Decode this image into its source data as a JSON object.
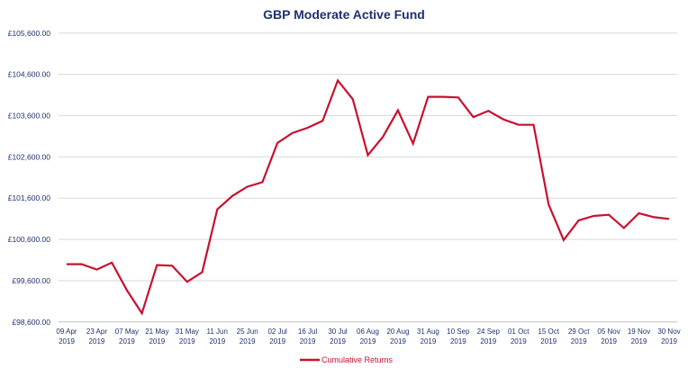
{
  "chart_data": {
    "type": "line",
    "title": "GBP Moderate Active Fund",
    "xlabel": "",
    "ylabel": "",
    "ylim": [
      98600,
      105600
    ],
    "yticks": [
      98600,
      99600,
      100600,
      101600,
      102600,
      103600,
      104600,
      105600
    ],
    "ytick_labels": [
      "£98,600.00",
      "£99,600.00",
      "£100,600.00",
      "£101,600.00",
      "£102,600.00",
      "£103,600.00",
      "£104,600.00",
      "£105,600.00"
    ],
    "xtick_labels": [
      [
        "09 Apr",
        "2019"
      ],
      [
        "23 Apr",
        "2019"
      ],
      [
        "07 May",
        "2019"
      ],
      [
        "21 May",
        "2019"
      ],
      [
        "31 May",
        "2019"
      ],
      [
        "11 Jun",
        "2019"
      ],
      [
        "25 Jun",
        "2019"
      ],
      [
        "02 Jul",
        "2019"
      ],
      [
        "16 Jul",
        "2019"
      ],
      [
        "30 Jul",
        "2019"
      ],
      [
        "06 Aug",
        "2019"
      ],
      [
        "20 Aug",
        "2019"
      ],
      [
        "31 Aug",
        "2019"
      ],
      [
        "10 Sep",
        "2019"
      ],
      [
        "24 Sep",
        "2019"
      ],
      [
        "01 Oct",
        "2019"
      ],
      [
        "15 Oct",
        "2019"
      ],
      [
        "29 Oct",
        "2019"
      ],
      [
        "05 Nov",
        "2019"
      ],
      [
        "19 Nov",
        "2019"
      ],
      [
        "30 Nov",
        "2019"
      ]
    ],
    "grid": true,
    "legend_position": "bottom",
    "series": [
      {
        "name": "Cumulative Returns",
        "color": "#c8102e",
        "values": [
          100000,
          100000,
          99870,
          100036,
          99369,
          98809,
          99979,
          99964,
          99572,
          99805,
          101328,
          101652,
          101877,
          101987,
          102939,
          103181,
          103305,
          103474,
          104454,
          103998,
          102644,
          103085,
          103730,
          102922,
          104056,
          104056,
          104041,
          103563,
          103715,
          103508,
          103377,
          103377,
          101447,
          100585,
          101060,
          101169,
          101198,
          100877,
          101235,
          101139,
          101096
        ]
      }
    ]
  },
  "colors": {
    "axis_text": "#1f3170",
    "grid": "#d9d9d9"
  }
}
